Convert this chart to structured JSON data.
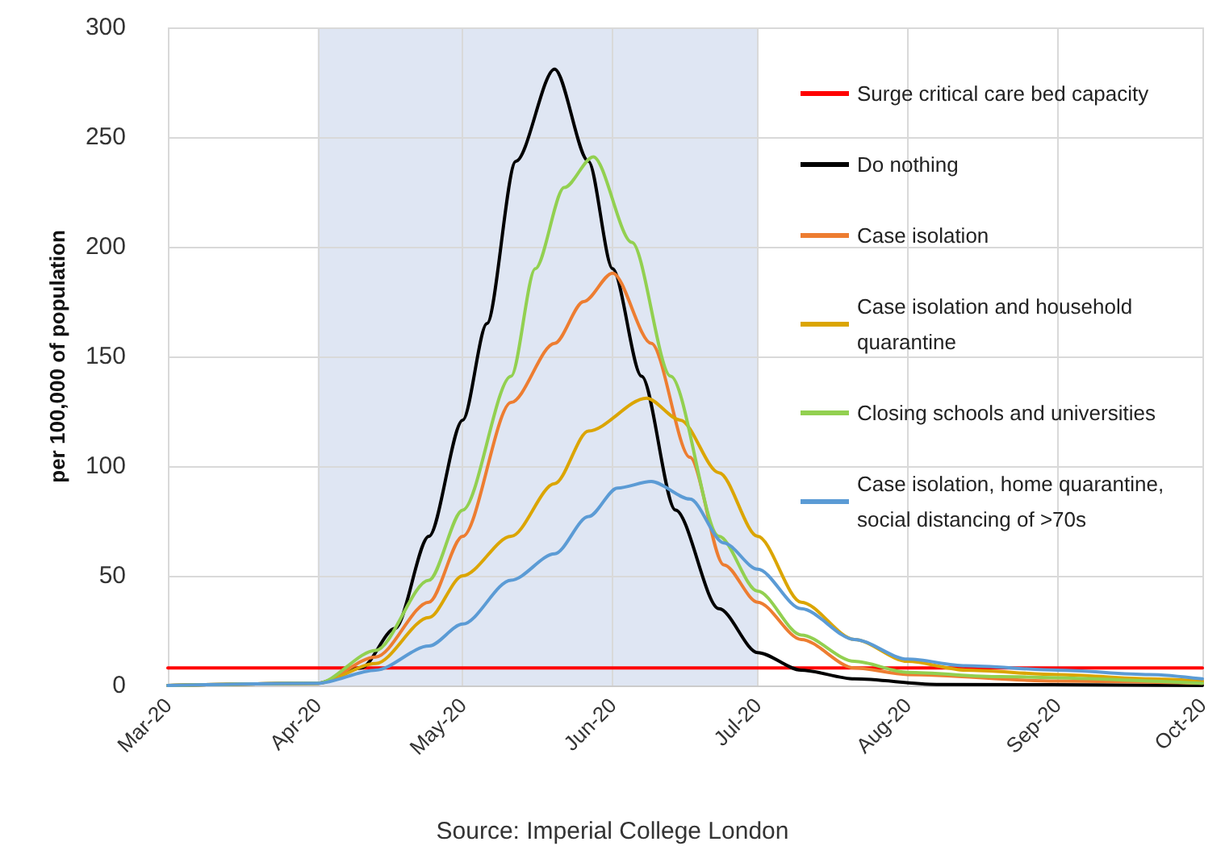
{
  "chart_data": {
    "type": "line",
    "ylabel": "per 100,000 of population",
    "annotations": [
      "Source: Imperial College London"
    ],
    "xlim": [
      "2020-03-01",
      "2020-10-01"
    ],
    "xticks": [
      {
        "value": "2020-03-01",
        "label": "Mar-20"
      },
      {
        "value": "2020-04-01",
        "label": "Apr-20"
      },
      {
        "value": "2020-05-01",
        "label": "May-20"
      },
      {
        "value": "2020-06-01",
        "label": "Jun-20"
      },
      {
        "value": "2020-07-01",
        "label": "Jul-20"
      },
      {
        "value": "2020-08-01",
        "label": "Aug-20"
      },
      {
        "value": "2020-09-01",
        "label": "Sep-20"
      },
      {
        "value": "2020-10-01",
        "label": "Oct-20"
      }
    ],
    "ylim": [
      0,
      300
    ],
    "yticks": [
      0,
      50,
      100,
      150,
      200,
      250,
      300
    ],
    "grid": true,
    "legend": "right",
    "marker": "none",
    "line_style": "solid",
    "bands": [
      {
        "axis": "x",
        "from": "2020-04-01",
        "to": "2020-07-01",
        "color": "#dfe6f3"
      }
    ],
    "series": [
      {
        "name": "Surge critical care bed capacity",
        "color": "#ff0000",
        "x": [
          "2020-03-01",
          "2020-10-01"
        ],
        "values": [
          8,
          8
        ]
      },
      {
        "name": "Do nothing",
        "color": "#000000",
        "x": [
          "2020-03-01",
          "2020-04-01",
          "2020-04-10",
          "2020-04-17",
          "2020-04-24",
          "2020-05-01",
          "2020-05-06",
          "2020-05-12",
          "2020-05-20",
          "2020-05-27",
          "2020-06-01",
          "2020-06-07",
          "2020-06-14",
          "2020-06-23",
          "2020-07-01",
          "2020-07-10",
          "2020-07-21",
          "2020-08-07",
          "2020-10-01"
        ],
        "values": [
          0,
          1,
          8,
          26,
          68,
          121,
          165,
          239,
          281,
          239,
          190,
          141,
          80,
          35,
          15,
          7,
          3,
          0.5,
          0
        ]
      },
      {
        "name": "Case isolation",
        "color": "#ed7d31",
        "x": [
          "2020-03-01",
          "2020-04-01",
          "2020-04-13",
          "2020-04-24",
          "2020-05-01",
          "2020-05-11",
          "2020-05-20",
          "2020-05-26",
          "2020-06-01",
          "2020-06-09",
          "2020-06-17",
          "2020-06-24",
          "2020-07-01",
          "2020-07-10",
          "2020-07-21",
          "2020-08-01",
          "2020-09-01",
          "2020-10-01"
        ],
        "values": [
          0,
          1,
          13,
          38,
          68,
          129,
          156,
          175,
          188,
          156,
          104,
          55,
          38,
          21,
          8,
          5,
          2,
          1
        ]
      },
      {
        "name": "Case isolation and household quarantine",
        "color": "#dba500",
        "x": [
          "2020-03-01",
          "2020-04-01",
          "2020-04-13",
          "2020-04-24",
          "2020-05-01",
          "2020-05-11",
          "2020-05-20",
          "2020-05-27",
          "2020-06-08",
          "2020-06-15",
          "2020-06-23",
          "2020-07-01",
          "2020-07-10",
          "2020-07-21",
          "2020-08-01",
          "2020-08-13",
          "2020-09-01",
          "2020-09-20",
          "2020-10-01"
        ],
        "values": [
          0,
          1,
          10,
          31,
          50,
          68,
          92,
          116,
          131,
          121,
          97,
          68,
          38,
          21,
          11,
          7,
          5,
          3,
          2
        ]
      },
      {
        "name": "Closing schools and universities",
        "color": "#92d050",
        "x": [
          "2020-03-01",
          "2020-04-01",
          "2020-04-13",
          "2020-04-24",
          "2020-05-01",
          "2020-05-11",
          "2020-05-16",
          "2020-05-22",
          "2020-05-28",
          "2020-06-05",
          "2020-06-13",
          "2020-06-23",
          "2020-07-01",
          "2020-07-10",
          "2020-07-21",
          "2020-08-01",
          "2020-08-20",
          "2020-10-01"
        ],
        "values": [
          0,
          1,
          16,
          48,
          80,
          141,
          190,
          227,
          241,
          202,
          141,
          68,
          43,
          23,
          11,
          6,
          4,
          1
        ]
      },
      {
        "name": "Case isolation, home quarantine, social distancing of >70s",
        "color": "#5b9bd5",
        "x": [
          "2020-03-01",
          "2020-04-01",
          "2020-04-13",
          "2020-04-24",
          "2020-05-01",
          "2020-05-11",
          "2020-05-20",
          "2020-05-27",
          "2020-06-02",
          "2020-06-09",
          "2020-06-17",
          "2020-06-24",
          "2020-07-01",
          "2020-07-10",
          "2020-07-21",
          "2020-08-01",
          "2020-08-13",
          "2020-09-01",
          "2020-09-20",
          "2020-10-01"
        ],
        "values": [
          0,
          1,
          7,
          18,
          28,
          48,
          60,
          77,
          90,
          93,
          85,
          65,
          53,
          35,
          21,
          12,
          9,
          7,
          5,
          3
        ]
      }
    ]
  }
}
